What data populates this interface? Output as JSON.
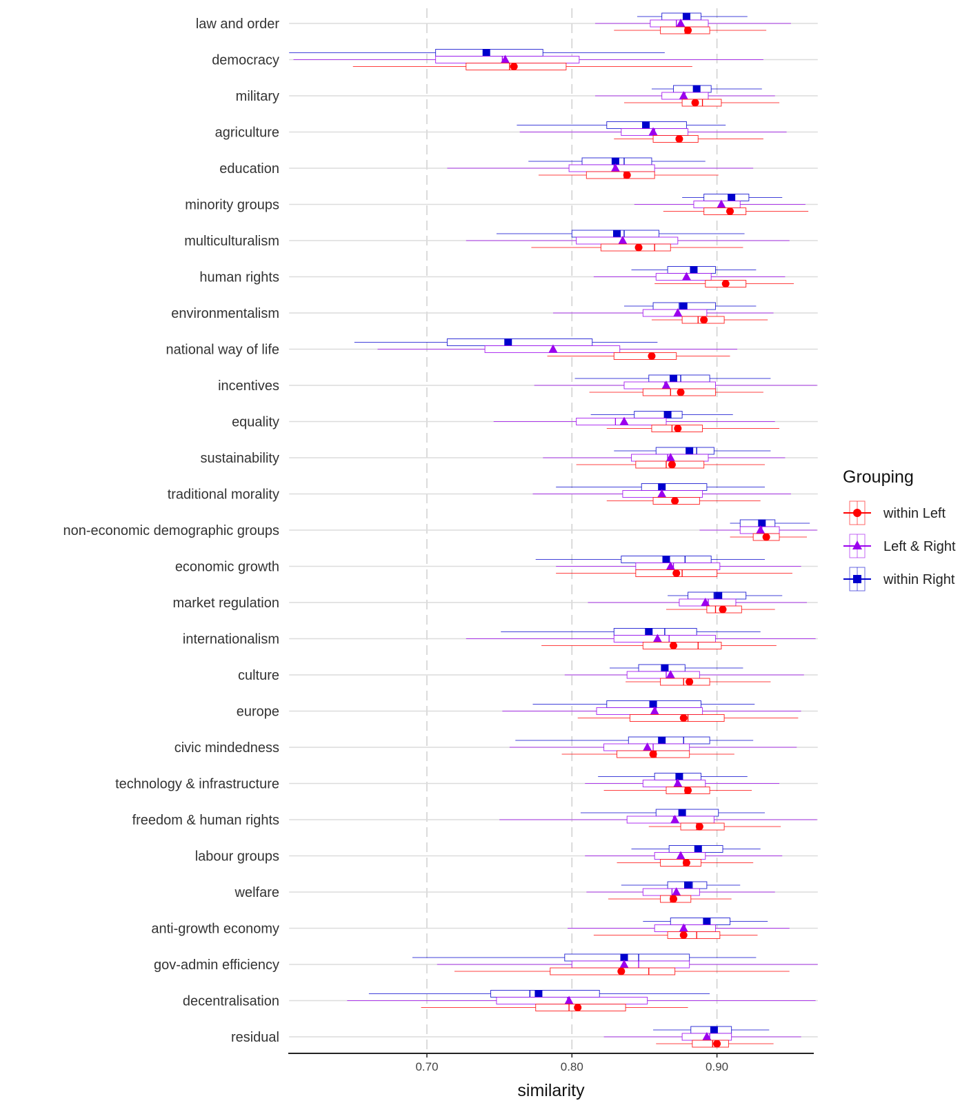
{
  "chart_data": {
    "type": "boxplot",
    "xlabel": "similarity",
    "ylabel": "",
    "xlim": [
      0.605,
      0.9695
    ],
    "x_ticks": [
      0.7,
      0.8,
      0.9
    ],
    "x_tick_labels": [
      "0.70",
      "0.80",
      "0.90"
    ],
    "grid": "vertical dashed major lines, horizontal lines per category",
    "legend": {
      "title": "Grouping",
      "position": "right",
      "entries": [
        {
          "label": "within Left",
          "color": "#ff0000",
          "marker": "circle"
        },
        {
          "label": "Left & Right",
          "color": "#9b00ee",
          "marker": "triangle"
        },
        {
          "label": "within Right",
          "color": "#0000cc",
          "marker": "square"
        }
      ]
    },
    "categories": [
      "law and order",
      "democracy",
      "military",
      "agriculture",
      "education",
      "minority groups",
      "multiculturalism",
      "human rights",
      "environmentalism",
      "national way of life",
      "incentives",
      "equality",
      "sustainability",
      "traditional morality",
      "non-economic demographic groups",
      "economic growth",
      "market regulation",
      "internationalism",
      "culture",
      "europe",
      "civic mindedness",
      "technology & infrastructure",
      "freedom & human rights",
      "labour groups",
      "welfare",
      "anti-growth economy",
      "gov-admin efficiency",
      "decentralisation",
      "residual"
    ],
    "series": [
      {
        "name": "within Right",
        "color": "#0000cc",
        "marker": "square",
        "values": [
          {
            "min": 0.845,
            "q1": 0.862,
            "median": 0.881,
            "q3": 0.889,
            "max": 0.921,
            "mean": 0.879
          },
          {
            "min": 0.6,
            "q1": 0.706,
            "median": 0.741,
            "q3": 0.78,
            "max": 0.864,
            "mean": 0.741
          },
          {
            "min": 0.855,
            "q1": 0.87,
            "median": 0.884,
            "q3": 0.896,
            "max": 0.931,
            "mean": 0.886
          },
          {
            "min": 0.762,
            "q1": 0.824,
            "median": 0.853,
            "q3": 0.879,
            "max": 0.906,
            "mean": 0.851
          },
          {
            "min": 0.77,
            "q1": 0.807,
            "median": 0.836,
            "q3": 0.855,
            "max": 0.892,
            "mean": 0.83
          },
          {
            "min": 0.876,
            "q1": 0.891,
            "median": 0.908,
            "q3": 0.922,
            "max": 0.945,
            "mean": 0.91
          },
          {
            "min": 0.748,
            "q1": 0.8,
            "median": 0.836,
            "q3": 0.86,
            "max": 0.919,
            "mean": 0.831
          },
          {
            "min": 0.841,
            "q1": 0.866,
            "median": 0.884,
            "q3": 0.899,
            "max": 0.927,
            "mean": 0.884
          },
          {
            "min": 0.836,
            "q1": 0.856,
            "median": 0.874,
            "q3": 0.899,
            "max": 0.927,
            "mean": 0.877
          },
          {
            "min": 0.65,
            "q1": 0.714,
            "median": 0.754,
            "q3": 0.814,
            "max": 0.859,
            "mean": 0.756
          },
          {
            "min": 0.802,
            "q1": 0.853,
            "median": 0.875,
            "q3": 0.895,
            "max": 0.937,
            "mean": 0.87
          },
          {
            "min": 0.813,
            "q1": 0.843,
            "median": 0.867,
            "q3": 0.876,
            "max": 0.911,
            "mean": 0.866
          },
          {
            "min": 0.829,
            "q1": 0.858,
            "median": 0.886,
            "q3": 0.898,
            "max": 0.937,
            "mean": 0.881
          },
          {
            "min": 0.789,
            "q1": 0.848,
            "median": 0.863,
            "q3": 0.893,
            "max": 0.933,
            "mean": 0.862
          },
          {
            "min": 0.909,
            "q1": 0.916,
            "median": 0.93,
            "q3": 0.94,
            "max": 0.964,
            "mean": 0.931
          },
          {
            "min": 0.775,
            "q1": 0.834,
            "median": 0.878,
            "q3": 0.896,
            "max": 0.933,
            "mean": 0.865
          },
          {
            "min": 0.866,
            "q1": 0.88,
            "median": 0.898,
            "q3": 0.92,
            "max": 0.945,
            "mean": 0.901
          },
          {
            "min": 0.751,
            "q1": 0.829,
            "median": 0.864,
            "q3": 0.886,
            "max": 0.93,
            "mean": 0.853
          },
          {
            "min": 0.826,
            "q1": 0.846,
            "median": 0.865,
            "q3": 0.878,
            "max": 0.918,
            "mean": 0.864
          },
          {
            "min": 0.773,
            "q1": 0.824,
            "median": 0.858,
            "q3": 0.889,
            "max": 0.926,
            "mean": 0.856
          },
          {
            "min": 0.761,
            "q1": 0.839,
            "median": 0.877,
            "q3": 0.895,
            "max": 0.925,
            "mean": 0.862
          },
          {
            "min": 0.818,
            "q1": 0.857,
            "median": 0.874,
            "q3": 0.889,
            "max": 0.921,
            "mean": 0.874
          },
          {
            "min": 0.806,
            "q1": 0.858,
            "median": 0.875,
            "q3": 0.901,
            "max": 0.933,
            "mean": 0.876
          },
          {
            "min": 0.841,
            "q1": 0.867,
            "median": 0.889,
            "q3": 0.904,
            "max": 0.93,
            "mean": 0.887
          },
          {
            "min": 0.834,
            "q1": 0.866,
            "median": 0.883,
            "q3": 0.893,
            "max": 0.916,
            "mean": 0.88
          },
          {
            "min": 0.849,
            "q1": 0.868,
            "median": 0.894,
            "q3": 0.909,
            "max": 0.935,
            "mean": 0.893
          },
          {
            "min": 0.69,
            "q1": 0.795,
            "median": 0.846,
            "q3": 0.881,
            "max": 0.927,
            "mean": 0.836
          },
          {
            "min": 0.66,
            "q1": 0.744,
            "median": 0.771,
            "q3": 0.819,
            "max": 0.895,
            "mean": 0.777
          },
          {
            "min": 0.856,
            "q1": 0.882,
            "median": 0.896,
            "q3": 0.91,
            "max": 0.936,
            "mean": 0.898
          }
        ]
      },
      {
        "name": "Left & Right",
        "color": "#9b00ee",
        "marker": "triangle",
        "values": [
          {
            "min": 0.816,
            "q1": 0.854,
            "median": 0.872,
            "q3": 0.894,
            "max": 0.951,
            "mean": 0.875
          },
          {
            "min": 0.608,
            "q1": 0.706,
            "median": 0.752,
            "q3": 0.805,
            "max": 0.932,
            "mean": 0.754
          },
          {
            "min": 0.816,
            "q1": 0.862,
            "median": 0.878,
            "q3": 0.894,
            "max": 0.94,
            "mean": 0.877
          },
          {
            "min": 0.764,
            "q1": 0.834,
            "median": 0.857,
            "q3": 0.88,
            "max": 0.948,
            "mean": 0.856
          },
          {
            "min": 0.714,
            "q1": 0.798,
            "median": 0.829,
            "q3": 0.857,
            "max": 0.925,
            "mean": 0.83
          },
          {
            "min": 0.843,
            "q1": 0.884,
            "median": 0.903,
            "q3": 0.916,
            "max": 0.961,
            "mean": 0.903
          },
          {
            "min": 0.727,
            "q1": 0.803,
            "median": 0.835,
            "q3": 0.873,
            "max": 0.95,
            "mean": 0.835
          },
          {
            "min": 0.815,
            "q1": 0.858,
            "median": 0.879,
            "q3": 0.896,
            "max": 0.947,
            "mean": 0.879
          },
          {
            "min": 0.787,
            "q1": 0.849,
            "median": 0.873,
            "q3": 0.893,
            "max": 0.939,
            "mean": 0.873
          },
          {
            "min": 0.666,
            "q1": 0.74,
            "median": 0.787,
            "q3": 0.833,
            "max": 0.914,
            "mean": 0.787
          },
          {
            "min": 0.774,
            "q1": 0.836,
            "median": 0.864,
            "q3": 0.899,
            "max": 0.969,
            "mean": 0.865
          },
          {
            "min": 0.746,
            "q1": 0.803,
            "median": 0.83,
            "q3": 0.865,
            "max": 0.94,
            "mean": 0.836
          },
          {
            "min": 0.78,
            "q1": 0.841,
            "median": 0.866,
            "q3": 0.894,
            "max": 0.947,
            "mean": 0.868
          },
          {
            "min": 0.773,
            "q1": 0.835,
            "median": 0.862,
            "q3": 0.89,
            "max": 0.951,
            "mean": 0.862
          },
          {
            "min": 0.888,
            "q1": 0.916,
            "median": 0.931,
            "q3": 0.943,
            "max": 0.969,
            "mean": 0.93
          },
          {
            "min": 0.789,
            "q1": 0.844,
            "median": 0.87,
            "q3": 0.902,
            "max": 0.958,
            "mean": 0.868
          },
          {
            "min": 0.811,
            "q1": 0.874,
            "median": 0.894,
            "q3": 0.913,
            "max": 0.962,
            "mean": 0.892
          },
          {
            "min": 0.727,
            "q1": 0.829,
            "median": 0.867,
            "q3": 0.899,
            "max": 0.968,
            "mean": 0.859
          },
          {
            "min": 0.795,
            "q1": 0.838,
            "median": 0.865,
            "q3": 0.888,
            "max": 0.96,
            "mean": 0.868
          },
          {
            "min": 0.752,
            "q1": 0.817,
            "median": 0.858,
            "q3": 0.89,
            "max": 0.958,
            "mean": 0.857
          },
          {
            "min": 0.757,
            "q1": 0.822,
            "median": 0.856,
            "q3": 0.881,
            "max": 0.955,
            "mean": 0.852
          },
          {
            "min": 0.809,
            "q1": 0.849,
            "median": 0.872,
            "q3": 0.892,
            "max": 0.943,
            "mean": 0.873
          },
          {
            "min": 0.75,
            "q1": 0.838,
            "median": 0.87,
            "q3": 0.898,
            "max": 0.969,
            "mean": 0.871
          },
          {
            "min": 0.809,
            "q1": 0.857,
            "median": 0.875,
            "q3": 0.892,
            "max": 0.945,
            "mean": 0.875
          },
          {
            "min": 0.81,
            "q1": 0.849,
            "median": 0.869,
            "q3": 0.888,
            "max": 0.94,
            "mean": 0.872
          },
          {
            "min": 0.797,
            "q1": 0.857,
            "median": 0.878,
            "q3": 0.899,
            "max": 0.95,
            "mean": 0.877
          },
          {
            "min": 0.707,
            "q1": 0.8,
            "median": 0.846,
            "q3": 0.881,
            "max": 0.97,
            "mean": 0.836
          },
          {
            "min": 0.645,
            "q1": 0.748,
            "median": 0.797,
            "q3": 0.852,
            "max": 0.968,
            "mean": 0.798
          },
          {
            "min": 0.822,
            "q1": 0.876,
            "median": 0.895,
            "q3": 0.91,
            "max": 0.958,
            "mean": 0.893
          }
        ]
      },
      {
        "name": "within Left",
        "color": "#ff0000",
        "marker": "circle",
        "values": [
          {
            "min": 0.829,
            "q1": 0.861,
            "median": 0.878,
            "q3": 0.895,
            "max": 0.934,
            "mean": 0.88
          },
          {
            "min": 0.649,
            "q1": 0.727,
            "median": 0.757,
            "q3": 0.796,
            "max": 0.883,
            "mean": 0.76
          },
          {
            "min": 0.836,
            "q1": 0.876,
            "median": 0.89,
            "q3": 0.903,
            "max": 0.943,
            "mean": 0.885
          },
          {
            "min": 0.829,
            "q1": 0.856,
            "median": 0.873,
            "q3": 0.887,
            "max": 0.932,
            "mean": 0.874
          },
          {
            "min": 0.777,
            "q1": 0.81,
            "median": 0.836,
            "q3": 0.857,
            "max": 0.901,
            "mean": 0.838
          },
          {
            "min": 0.863,
            "q1": 0.891,
            "median": 0.909,
            "q3": 0.92,
            "max": 0.963,
            "mean": 0.909
          },
          {
            "min": 0.772,
            "q1": 0.82,
            "median": 0.857,
            "q3": 0.868,
            "max": 0.918,
            "mean": 0.846
          },
          {
            "min": 0.857,
            "q1": 0.892,
            "median": 0.905,
            "q3": 0.92,
            "max": 0.953,
            "mean": 0.906
          },
          {
            "min": 0.855,
            "q1": 0.876,
            "median": 0.887,
            "q3": 0.905,
            "max": 0.935,
            "mean": 0.891
          },
          {
            "min": 0.783,
            "q1": 0.829,
            "median": 0.855,
            "q3": 0.872,
            "max": 0.909,
            "mean": 0.855
          },
          {
            "min": 0.812,
            "q1": 0.849,
            "median": 0.868,
            "q3": 0.899,
            "max": 0.932,
            "mean": 0.875
          },
          {
            "min": 0.824,
            "q1": 0.855,
            "median": 0.869,
            "q3": 0.89,
            "max": 0.943,
            "mean": 0.873
          },
          {
            "min": 0.803,
            "q1": 0.844,
            "median": 0.865,
            "q3": 0.891,
            "max": 0.933,
            "mean": 0.869
          },
          {
            "min": 0.824,
            "q1": 0.856,
            "median": 0.871,
            "q3": 0.888,
            "max": 0.93,
            "mean": 0.871
          },
          {
            "min": 0.909,
            "q1": 0.925,
            "median": 0.934,
            "q3": 0.943,
            "max": 0.962,
            "mean": 0.934
          },
          {
            "min": 0.789,
            "q1": 0.844,
            "median": 0.876,
            "q3": 0.9,
            "max": 0.952,
            "mean": 0.872
          },
          {
            "min": 0.865,
            "q1": 0.893,
            "median": 0.899,
            "q3": 0.917,
            "max": 0.94,
            "mean": 0.904
          },
          {
            "min": 0.779,
            "q1": 0.849,
            "median": 0.887,
            "q3": 0.903,
            "max": 0.941,
            "mean": 0.87
          },
          {
            "min": 0.837,
            "q1": 0.861,
            "median": 0.877,
            "q3": 0.895,
            "max": 0.937,
            "mean": 0.881
          },
          {
            "min": 0.804,
            "q1": 0.84,
            "median": 0.88,
            "q3": 0.905,
            "max": 0.956,
            "mean": 0.877
          },
          {
            "min": 0.793,
            "q1": 0.831,
            "median": 0.858,
            "q3": 0.881,
            "max": 0.912,
            "mean": 0.856
          },
          {
            "min": 0.822,
            "q1": 0.865,
            "median": 0.878,
            "q3": 0.895,
            "max": 0.924,
            "mean": 0.88
          },
          {
            "min": 0.853,
            "q1": 0.875,
            "median": 0.886,
            "q3": 0.905,
            "max": 0.944,
            "mean": 0.888
          },
          {
            "min": 0.831,
            "q1": 0.861,
            "median": 0.877,
            "q3": 0.889,
            "max": 0.925,
            "mean": 0.879
          },
          {
            "min": 0.825,
            "q1": 0.861,
            "median": 0.868,
            "q3": 0.882,
            "max": 0.91,
            "mean": 0.87
          },
          {
            "min": 0.815,
            "q1": 0.866,
            "median": 0.886,
            "q3": 0.902,
            "max": 0.928,
            "mean": 0.877
          },
          {
            "min": 0.719,
            "q1": 0.785,
            "median": 0.853,
            "q3": 0.871,
            "max": 0.95,
            "mean": 0.834
          },
          {
            "min": 0.696,
            "q1": 0.775,
            "median": 0.798,
            "q3": 0.837,
            "max": 0.88,
            "mean": 0.804
          },
          {
            "min": 0.858,
            "q1": 0.883,
            "median": 0.897,
            "q3": 0.908,
            "max": 0.939,
            "mean": 0.9
          }
        ]
      }
    ]
  }
}
